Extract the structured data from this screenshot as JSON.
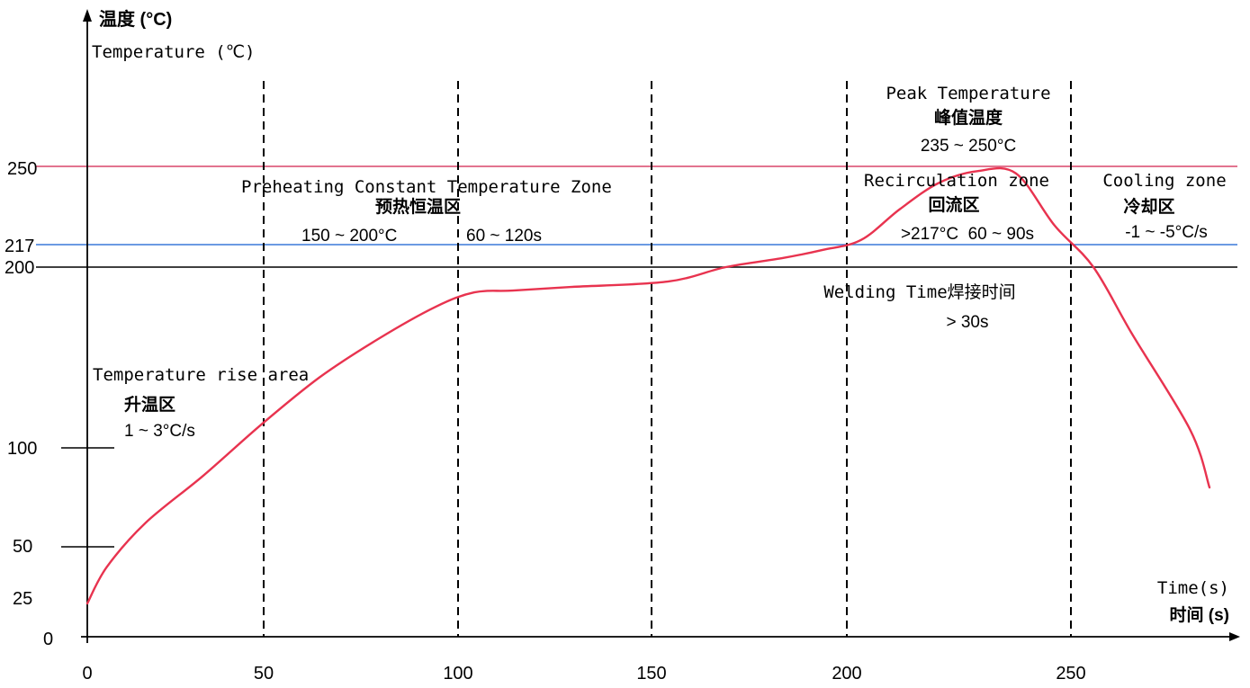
{
  "chart_data": {
    "type": "line",
    "y_title_cn": "温度 (°C)",
    "y_title_en": "Temperature (℃)",
    "x_title_en": "Time(s)",
    "x_title_cn": "时间 (s)",
    "x_ticks": [
      "0",
      "50",
      "100",
      "150",
      "200",
      "250"
    ],
    "y_ticks": [
      "0",
      "25",
      "50",
      "100",
      "200",
      "217",
      "250"
    ],
    "xlim": [
      0,
      300
    ],
    "series": [
      {
        "color": "#e8334f",
        "x": [
          0,
          5,
          15,
          30,
          45,
          60,
          75,
          90,
          100,
          110,
          125,
          150,
          165,
          180,
          190,
          200,
          210,
          220,
          230,
          240,
          250,
          260,
          270,
          285,
          290
        ],
        "y": [
          25,
          41,
          62,
          86,
          113,
          139,
          160,
          178,
          186,
          187,
          189,
          192,
          200,
          207,
          213,
          219,
          232,
          243,
          248,
          247,
          225,
          200,
          163,
          110,
          80
        ]
      }
    ],
    "reference_lines": [
      {
        "value": 250,
        "color": "#d9466a"
      },
      {
        "value": 217,
        "color": "#3a78d8"
      },
      {
        "value": 200,
        "color": "#000000"
      }
    ],
    "zone_boundaries": [
      50,
      100,
      150,
      200,
      250
    ],
    "annotations": {
      "rise_en": "Temperature rise area",
      "rise_cn": "升温区",
      "rise_rate": "1 ~ 3°C/s",
      "preheat_en": "Preheating Constant Temperature Zone",
      "preheat_cn": "预热恒温区",
      "preheat_temp": "150 ~ 200°C",
      "preheat_time": "60 ~ 120s",
      "peak_en": "Peak Temperature",
      "peak_cn": "峰值温度",
      "peak_range": "235 ~ 250°C",
      "recirc_en": "Recirculation zone",
      "recirc_cn": "回流区",
      "recirc_spec": ">217°C  60 ~ 90s",
      "cooling_en": "Cooling zone",
      "cooling_cn": "冷却区",
      "cooling_rate": "-1 ~ -5°C/s",
      "welding_en": "Welding Time焊接时间",
      "welding_val": "> 30s"
    }
  }
}
